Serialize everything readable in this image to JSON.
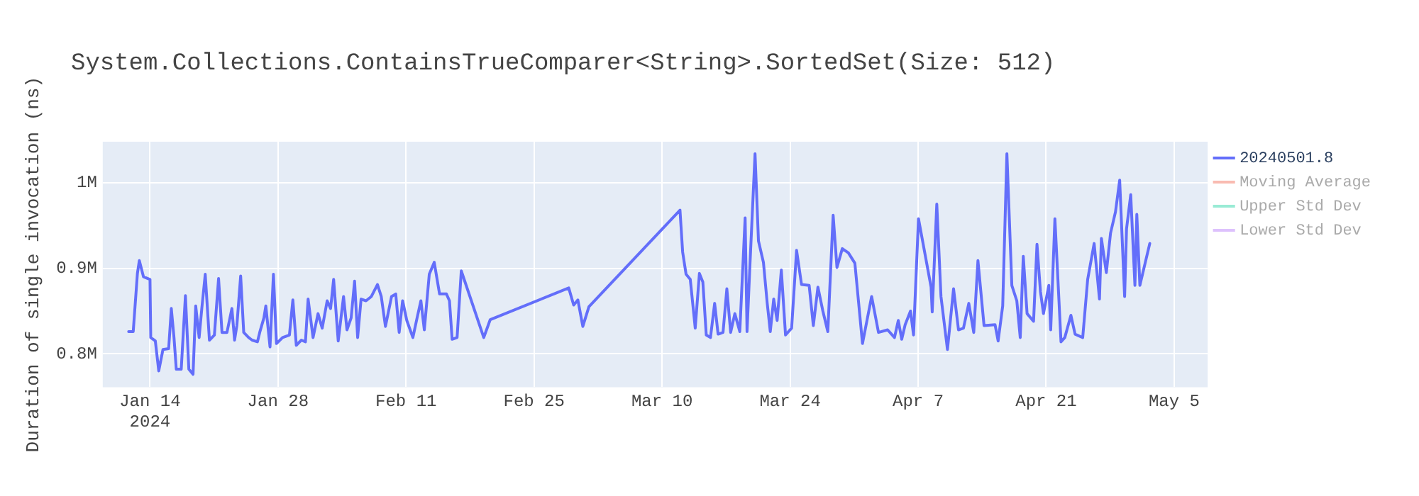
{
  "chart_data": {
    "type": "line",
    "title": "System.Collections.ContainsTrueComparer<String>.SortedSet(Size: 512)",
    "ylabel": "Duration of single invocation (ns)",
    "x": [
      "2024-01-11T16:00",
      "2024-01-12T04:00",
      "2024-01-12T15:00",
      "2024-01-12T20:00",
      "2024-01-13T07:00",
      "2024-01-14T00:00",
      "2024-01-14T02:00",
      "2024-01-14T14:00",
      "2024-01-14T23:00",
      "2024-01-15T10:00",
      "2024-01-16T01:00",
      "2024-01-16T08:00",
      "2024-01-16T15:00",
      "2024-01-16T21:00",
      "2024-01-17T10:00",
      "2024-01-17T21:00",
      "2024-01-18T06:00",
      "2024-01-18T17:00",
      "2024-01-19T00:00",
      "2024-01-19T09:00",
      "2024-01-19T16:00",
      "2024-01-20T01:00",
      "2024-01-20T12:00",
      "2024-01-21T01:00",
      "2024-01-21T12:00",
      "2024-01-21T21:00",
      "2024-01-22T10:00",
      "2024-01-22T23:00",
      "2024-01-23T06:00",
      "2024-01-23T12:00",
      "2024-01-23T22:00",
      "2024-01-24T06:00",
      "2024-01-24T19:00",
      "2024-01-25T04:00",
      "2024-01-25T18:00",
      "2024-01-26T00:00",
      "2024-01-26T11:00",
      "2024-01-26T16:00",
      "2024-01-27T03:00",
      "2024-01-27T12:00",
      "2024-01-27T20:00",
      "2024-01-28T12:00",
      "2024-01-29T06:00",
      "2024-01-29T15:00",
      "2024-01-30T00:00",
      "2024-01-30T13:00",
      "2024-01-31T00:00",
      "2024-01-31T07:00",
      "2024-01-31T20:00",
      "2024-02-01T09:00",
      "2024-02-01T20:00",
      "2024-02-02T09:00",
      "2024-02-02T18:00",
      "2024-02-03T02:00",
      "2024-02-03T14:00",
      "2024-02-04T04:00",
      "2024-02-04T13:00",
      "2024-02-05T00:00",
      "2024-02-05T09:00",
      "2024-02-05T17:00",
      "2024-02-06T02:00",
      "2024-02-06T15:00",
      "2024-02-07T05:00",
      "2024-02-07T21:00",
      "2024-02-08T07:00",
      "2024-02-08T18:00",
      "2024-02-09T10:00",
      "2024-02-09T21:00",
      "2024-02-10T06:00",
      "2024-02-10T15:00",
      "2024-02-11T02:00",
      "2024-02-11T18:00",
      "2024-02-12T05:00",
      "2024-02-12T15:00",
      "2024-02-13T00:00",
      "2024-02-13T13:00",
      "2024-02-14T02:00",
      "2024-02-14T16:00",
      "2024-02-15T10:00",
      "2024-02-15T18:00",
      "2024-02-16T01:00",
      "2024-02-16T14:00",
      "2024-02-17T01:00",
      "2024-02-19T12:00",
      "2024-02-20T05:00",
      "2024-02-28T19:00",
      "2024-02-29T08:00",
      "2024-02-29T19:00",
      "2024-03-01T08:00",
      "2024-03-02T00:00",
      "2024-03-11T23:00",
      "2024-03-12T06:00",
      "2024-03-12T15:00",
      "2024-03-13T02:00",
      "2024-03-13T15:00",
      "2024-03-14T02:00",
      "2024-03-14T11:00",
      "2024-03-14T20:00",
      "2024-03-15T07:00",
      "2024-03-15T18:00",
      "2024-03-16T03:00",
      "2024-03-16T16:00",
      "2024-03-17T02:00",
      "2024-03-17T12:00",
      "2024-03-17T23:00",
      "2024-03-18T12:00",
      "2024-03-19T02:00",
      "2024-03-19T07:00",
      "2024-03-19T14:00",
      "2024-03-20T04:00",
      "2024-03-20T13:00",
      "2024-03-21T02:00",
      "2024-03-21T12:00",
      "2024-03-21T20:00",
      "2024-03-22T05:00",
      "2024-03-22T14:00",
      "2024-03-23T01:00",
      "2024-03-23T12:00",
      "2024-03-24T04:00",
      "2024-03-24T17:00",
      "2024-03-25T06:00",
      "2024-03-26T02:00",
      "2024-03-26T13:00",
      "2024-03-27T01:00",
      "2024-03-27T14:00",
      "2024-03-28T03:00",
      "2024-03-28T17:00",
      "2024-03-29T03:00",
      "2024-03-29T17:00",
      "2024-03-30T09:00",
      "2024-03-31T02:00",
      "2024-03-31T22:00",
      "2024-04-01T22:00",
      "2024-04-02T16:00",
      "2024-04-03T16:00",
      "2024-04-04T10:00",
      "2024-04-04T20:00",
      "2024-04-05T05:00",
      "2024-04-05T14:00",
      "2024-04-06T04:00",
      "2024-04-06T12:00",
      "2024-04-07T01:00",
      "2024-04-08T10:00",
      "2024-04-08T13:00",
      "2024-04-09T01:00",
      "2024-04-09T12:00",
      "2024-04-10T05:00",
      "2024-04-10T21:00",
      "2024-04-11T10:00",
      "2024-04-11T23:00",
      "2024-04-12T13:00",
      "2024-04-13T02:00",
      "2024-04-13T13:00",
      "2024-04-14T05:00",
      "2024-04-15T10:00",
      "2024-04-15T18:00",
      "2024-04-16T06:00",
      "2024-04-16T17:00",
      "2024-04-17T06:00",
      "2024-04-17T19:00",
      "2024-04-18T04:00",
      "2024-04-18T12:00",
      "2024-04-18T22:00",
      "2024-04-19T15:00",
      "2024-04-20T00:00",
      "2024-04-20T09:00",
      "2024-04-20T17:00",
      "2024-04-21T07:00",
      "2024-04-21T12:00",
      "2024-04-21T23:00",
      "2024-04-22T15:00",
      "2024-04-23T01:00",
      "2024-04-23T17:00",
      "2024-04-24T04:00",
      "2024-04-25T00:00",
      "2024-04-25T13:00",
      "2024-04-26T06:00",
      "2024-04-26T20:00",
      "2024-04-27T01:00",
      "2024-04-27T14:00",
      "2024-04-28T01:00",
      "2024-04-28T14:00",
      "2024-04-29T01:00",
      "2024-04-29T14:00",
      "2024-04-29T19:00",
      "2024-04-30T06:00",
      "2024-04-30T17:00",
      "2024-04-30T22:00",
      "2024-05-01T06:00",
      "2024-05-02T08:00"
    ],
    "series": [
      {
        "name": "20240501.8",
        "color": "#636efa",
        "values": [
          826000,
          826000,
          894000,
          909000,
          890000,
          887000,
          819000,
          815000,
          780000,
          805000,
          806000,
          853000,
          819000,
          782000,
          782000,
          868000,
          782000,
          776000,
          856000,
          819000,
          853000,
          893000,
          816000,
          822000,
          888000,
          825000,
          825000,
          853000,
          816000,
          833000,
          891000,
          825000,
          819000,
          816000,
          814000,
          825000,
          842000,
          856000,
          808000,
          893000,
          812000,
          819000,
          822000,
          863000,
          810000,
          816000,
          814000,
          864000,
          819000,
          847000,
          830000,
          862000,
          853000,
          887000,
          815000,
          867000,
          828000,
          842000,
          885000,
          819000,
          864000,
          862000,
          867000,
          881000,
          867000,
          832000,
          867000,
          870000,
          825000,
          862000,
          839000,
          819000,
          842000,
          862000,
          828000,
          893000,
          907000,
          870000,
          870000,
          862000,
          817000,
          819000,
          897000,
          819000,
          840000,
          877000,
          857000,
          863000,
          832000,
          855000,
          968000,
          919000,
          893000,
          887000,
          830000,
          894000,
          884000,
          822000,
          819000,
          859000,
          823000,
          825000,
          876000,
          825000,
          847000,
          826000,
          959000,
          826000,
          898000,
          1034000,
          932000,
          907000,
          859000,
          826000,
          864000,
          839000,
          898000,
          822000,
          830000,
          921000,
          881000,
          880000,
          833000,
          878000,
          850000,
          826000,
          962000,
          901000,
          923000,
          918000,
          906000,
          812000,
          867000,
          825000,
          828000,
          819000,
          839000,
          817000,
          834000,
          850000,
          822000,
          958000,
          878000,
          849000,
          975000,
          867000,
          805000,
          876000,
          828000,
          830000,
          859000,
          825000,
          909000,
          833000,
          834000,
          815000,
          856000,
          1034000,
          880000,
          862000,
          819000,
          914000,
          847000,
          838000,
          928000,
          873000,
          847000,
          880000,
          828000,
          958000,
          814000,
          819000,
          845000,
          823000,
          819000,
          887000,
          929000,
          864000,
          935000,
          895000,
          941000,
          966000,
          1003000,
          867000,
          946000,
          986000,
          880000,
          963000,
          880000,
          929000
        ]
      },
      {
        "name": "Moving Average",
        "color": "#ef553b",
        "values": [
          null,
          null,
          null,
          null,
          null,
          null,
          null,
          null,
          null,
          null,
          null,
          null,
          null,
          null,
          null,
          null,
          null,
          null,
          null,
          null,
          null,
          null,
          null,
          null,
          null,
          null,
          null,
          null,
          null,
          null,
          null,
          null,
          null,
          null,
          null,
          null,
          null,
          null,
          null,
          null,
          null,
          null,
          null,
          null,
          null,
          null,
          null,
          null,
          null,
          null,
          null,
          null,
          null,
          null,
          null,
          null,
          null,
          null,
          null,
          null,
          null,
          null,
          null,
          null,
          null,
          null,
          null,
          null,
          null,
          null,
          null,
          null,
          null,
          null,
          null,
          null,
          null,
          null,
          null,
          null,
          null,
          null,
          null,
          null,
          null,
          null,
          null,
          null,
          null,
          null,
          null,
          null,
          null,
          null,
          null,
          null,
          null,
          null,
          null,
          null,
          null,
          null,
          null,
          null,
          null,
          null,
          null,
          null,
          null,
          null,
          null,
          null,
          null,
          null,
          null,
          null,
          null,
          null,
          null,
          null,
          null,
          null,
          null,
          null,
          null,
          null,
          null,
          null,
          null,
          null,
          null,
          null,
          null,
          null,
          null,
          null,
          null,
          null,
          null,
          null,
          null,
          null,
          null,
          null,
          null,
          null,
          null,
          null,
          null,
          null,
          null,
          null,
          null,
          null,
          null,
          null,
          null,
          null,
          null,
          null,
          null,
          null,
          null,
          null,
          null,
          null,
          null,
          null,
          null,
          null,
          null,
          null,
          null,
          null,
          null,
          null,
          null,
          null,
          null,
          null,
          null,
          null,
          null,
          null,
          null,
          null,
          null,
          null,
          null,
          null
        ]
      },
      {
        "name": "Upper Std Dev",
        "color": "#00cc96",
        "values": [
          null,
          null,
          null,
          null,
          null,
          null,
          null,
          null,
          null,
          null,
          null,
          null,
          null,
          null,
          null,
          null,
          null,
          null,
          null,
          null,
          null,
          null,
          null,
          null,
          null,
          null,
          null,
          null,
          null,
          null,
          null,
          null,
          null,
          null,
          null,
          null,
          null,
          null,
          null,
          null,
          null,
          null,
          null,
          null,
          null,
          null,
          null,
          null,
          null,
          null,
          null,
          null,
          null,
          null,
          null,
          null,
          null,
          null,
          null,
          null,
          null,
          null,
          null,
          null,
          null,
          null,
          null,
          null,
          null,
          null,
          null,
          null,
          null,
          null,
          null,
          null,
          null,
          null,
          null,
          null,
          null,
          null,
          null,
          null,
          null,
          null,
          null,
          null,
          null,
          null,
          null,
          null,
          null,
          null,
          null,
          null,
          null,
          null,
          null,
          null,
          null,
          null,
          null,
          null,
          null,
          null,
          null,
          null,
          null,
          null,
          null,
          null,
          null,
          null,
          null,
          null,
          null,
          null,
          null,
          null,
          null,
          null,
          null,
          null,
          null,
          null,
          null,
          null,
          null,
          null,
          null,
          null,
          null,
          null,
          null,
          null,
          null,
          null,
          null,
          null,
          null,
          null,
          null,
          null,
          null,
          null,
          null,
          null,
          null,
          null,
          null,
          null,
          null,
          null,
          null,
          null,
          null,
          null,
          null,
          null,
          null,
          null,
          null,
          null,
          null,
          null,
          null,
          null,
          null,
          null,
          null,
          null,
          null,
          null,
          null,
          null,
          null,
          null,
          null,
          null,
          null,
          null,
          null,
          null,
          null,
          null,
          null,
          null,
          null,
          null
        ]
      },
      {
        "name": "Lower Std Dev",
        "color": "#ab63fa",
        "values": [
          null,
          null,
          null,
          null,
          null,
          null,
          null,
          null,
          null,
          null,
          null,
          null,
          null,
          null,
          null,
          null,
          null,
          null,
          null,
          null,
          null,
          null,
          null,
          null,
          null,
          null,
          null,
          null,
          null,
          null,
          null,
          null,
          null,
          null,
          null,
          null,
          null,
          null,
          null,
          null,
          null,
          null,
          null,
          null,
          null,
          null,
          null,
          null,
          null,
          null,
          null,
          null,
          null,
          null,
          null,
          null,
          null,
          null,
          null,
          null,
          null,
          null,
          null,
          null,
          null,
          null,
          null,
          null,
          null,
          null,
          null,
          null,
          null,
          null,
          null,
          null,
          null,
          null,
          null,
          null,
          null,
          null,
          null,
          null,
          null,
          null,
          null,
          null,
          null,
          null,
          null,
          null,
          null,
          null,
          null,
          null,
          null,
          null,
          null,
          null,
          null,
          null,
          null,
          null,
          null,
          null,
          null,
          null,
          null,
          null,
          null,
          null,
          null,
          null,
          null,
          null,
          null,
          null,
          null,
          null,
          null,
          null,
          null,
          null,
          null,
          null,
          null,
          null,
          null,
          null,
          null,
          null,
          null,
          null,
          null,
          null,
          null,
          null,
          null,
          null,
          null,
          null,
          null,
          null,
          null,
          null,
          null,
          null,
          null,
          null,
          null,
          null,
          null,
          null,
          null,
          null,
          null,
          null,
          null,
          null,
          null,
          null,
          null,
          null,
          null,
          null,
          null,
          null,
          null,
          null,
          null,
          null,
          null,
          null,
          null,
          null,
          null,
          null,
          null,
          null,
          null,
          null,
          null,
          null,
          null,
          null,
          null,
          null,
          null,
          null
        ]
      }
    ],
    "xlim": [
      "2024-01-08T20:00",
      "2024-05-08T16:00"
    ],
    "xticks": [
      {
        "value": "2024-01-14",
        "label": "Jan 14\n2024"
      },
      {
        "value": "2024-01-28",
        "label": "Jan 28"
      },
      {
        "value": "2024-02-11",
        "label": "Feb 11"
      },
      {
        "value": "2024-02-25",
        "label": "Feb 25"
      },
      {
        "value": "2024-03-10",
        "label": "Mar 10"
      },
      {
        "value": "2024-03-24",
        "label": "Mar 24"
      },
      {
        "value": "2024-04-07",
        "label": "Apr 7"
      },
      {
        "value": "2024-04-21",
        "label": "Apr 21"
      },
      {
        "value": "2024-05-05",
        "label": "May 5"
      }
    ],
    "ylim": [
      761000,
      1048000
    ],
    "yticks": [
      {
        "value": 800000,
        "label": "0.8M"
      },
      {
        "value": 900000,
        "label": "0.9M"
      },
      {
        "value": 1000000,
        "label": "1M"
      }
    ],
    "grid": true,
    "legend": "top right",
    "marker": "none",
    "line_style": "solid"
  }
}
